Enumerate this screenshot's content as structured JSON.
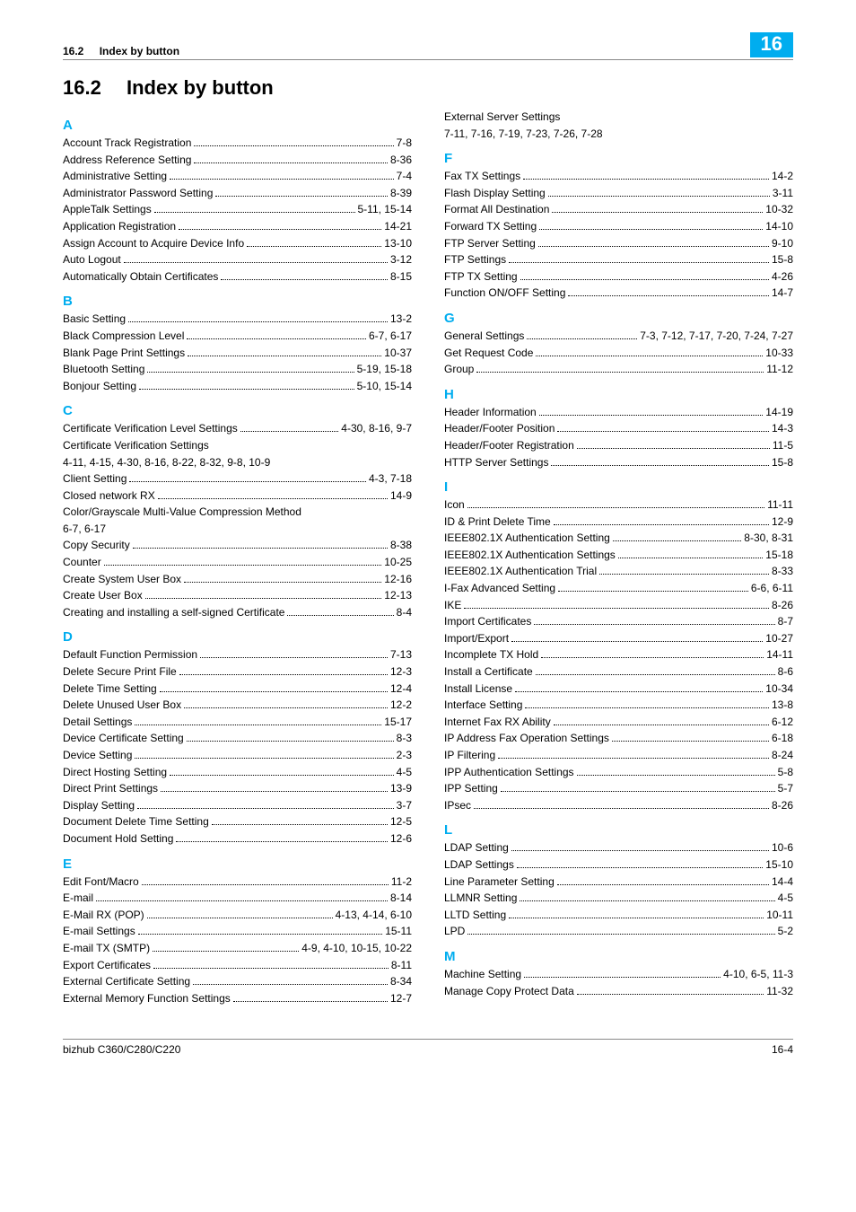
{
  "header": {
    "section_num": "16.2",
    "section_title": "Index by button",
    "chapter_badge": "16"
  },
  "title": {
    "num": "16.2",
    "text": "Index by button"
  },
  "footer": {
    "left": "bizhub C360/C280/C220",
    "right": "16-4"
  },
  "groups": [
    {
      "letter": "A",
      "entries": [
        {
          "term": "Account Track Registration",
          "pages": "7-8"
        },
        {
          "term": "Address Reference Setting",
          "pages": "8-36"
        },
        {
          "term": "Administrative Setting",
          "pages": "7-4"
        },
        {
          "term": "Administrator Password Setting",
          "pages": "8-39"
        },
        {
          "term": "AppleTalk Settings",
          "pages": "5-11, 15-14"
        },
        {
          "term": "Application Registration",
          "pages": "14-21"
        },
        {
          "term": "Assign Account to Acquire Device Info",
          "pages": "13-10"
        },
        {
          "term": "Auto Logout",
          "pages": "3-12"
        },
        {
          "term": "Automatically Obtain Certificates",
          "pages": "8-15"
        }
      ]
    },
    {
      "letter": "B",
      "entries": [
        {
          "term": "Basic Setting",
          "pages": "13-2"
        },
        {
          "term": "Black Compression Level",
          "pages": "6-7, 6-17"
        },
        {
          "term": "Blank Page Print Settings",
          "pages": "10-37"
        },
        {
          "term": "Bluetooth Setting",
          "pages": "5-19, 15-18"
        },
        {
          "term": "Bonjour Setting",
          "pages": "5-10, 15-14"
        }
      ]
    },
    {
      "letter": "C",
      "entries": [
        {
          "term": "Certificate Verification Level Settings",
          "pages": "4-30, 8-16, 9-7"
        },
        {
          "type": "ml",
          "term": "Certificate Verification Settings",
          "pages": "4-11, 4-15, 4-30, 8-16, 8-22, 8-32, 9-8, 10-9"
        },
        {
          "term": "Client Setting",
          "pages": "4-3, 7-18"
        },
        {
          "term": "Closed network RX",
          "pages": "14-9"
        },
        {
          "type": "ml",
          "term": "Color/Grayscale Multi-Value Compression Method",
          "pages": "6-7, 6-17"
        },
        {
          "term": "Copy Security",
          "pages": "8-38"
        },
        {
          "term": "Counter",
          "pages": "10-25"
        },
        {
          "term": "Create System User Box",
          "pages": "12-16"
        },
        {
          "term": "Create User Box",
          "pages": "12-13"
        },
        {
          "term": "Creating and installing a self-signed Certificate",
          "pages": "8-4"
        }
      ]
    },
    {
      "letter": "D",
      "entries": [
        {
          "term": "Default Function Permission",
          "pages": "7-13"
        },
        {
          "term": "Delete Secure Print File",
          "pages": "12-3"
        },
        {
          "term": "Delete Time Setting",
          "pages": "12-4"
        },
        {
          "term": "Delete Unused User Box",
          "pages": "12-2"
        },
        {
          "term": "Detail Settings",
          "pages": "15-17"
        },
        {
          "term": "Device Certificate Setting",
          "pages": "8-3"
        },
        {
          "term": "Device Setting",
          "pages": "2-3"
        },
        {
          "term": "Direct Hosting Setting",
          "pages": "4-5"
        },
        {
          "term": "Direct Print Settings",
          "pages": "13-9"
        },
        {
          "term": "Display Setting",
          "pages": "3-7"
        },
        {
          "term": "Document Delete Time Setting",
          "pages": "12-5"
        },
        {
          "term": "Document Hold Setting",
          "pages": "12-6"
        }
      ]
    },
    {
      "letter": "E",
      "entries": [
        {
          "term": "Edit Font/Macro",
          "pages": "11-2"
        },
        {
          "term": "E-mail",
          "pages": "8-14"
        },
        {
          "term": "E-Mail RX (POP)",
          "pages": "4-13, 4-14, 6-10"
        },
        {
          "term": "E-mail Settings",
          "pages": "15-11"
        },
        {
          "term": "E-mail TX (SMTP)",
          "pages": "4-9, 4-10, 10-15, 10-22"
        },
        {
          "term": "Export Certificates",
          "pages": "8-11"
        },
        {
          "term": "External Certificate Setting",
          "pages": "8-34"
        },
        {
          "term": "External Memory Function Settings",
          "pages": "12-7"
        },
        {
          "type": "ml",
          "term": "External Server Settings",
          "pages": "7-11, 7-16, 7-19, 7-23, 7-26, 7-28"
        }
      ]
    },
    {
      "letter": "F",
      "entries": [
        {
          "term": "Fax TX Settings",
          "pages": "14-2"
        },
        {
          "term": "Flash Display Setting",
          "pages": "3-11"
        },
        {
          "term": "Format All Destination",
          "pages": "10-32"
        },
        {
          "term": "Forward TX Setting",
          "pages": "14-10"
        },
        {
          "term": "FTP Server Setting",
          "pages": "9-10"
        },
        {
          "term": "FTP Settings",
          "pages": "15-8"
        },
        {
          "term": "FTP TX Setting",
          "pages": "4-26"
        },
        {
          "term": "Function ON/OFF Setting",
          "pages": "14-7"
        }
      ]
    },
    {
      "letter": "G",
      "entries": [
        {
          "term": "General Settings",
          "pages": "7-3, 7-12, 7-17, 7-20, 7-24, 7-27"
        },
        {
          "term": "Get Request Code",
          "pages": "10-33"
        },
        {
          "term": "Group",
          "pages": "11-12"
        }
      ]
    },
    {
      "letter": "H",
      "entries": [
        {
          "term": "Header Information",
          "pages": "14-19"
        },
        {
          "term": "Header/Footer Position",
          "pages": "14-3"
        },
        {
          "term": "Header/Footer Registration",
          "pages": "11-5"
        },
        {
          "term": "HTTP Server Settings",
          "pages": "15-8"
        }
      ]
    },
    {
      "letter": "I",
      "entries": [
        {
          "term": "Icon",
          "pages": "11-11"
        },
        {
          "term": "ID & Print Delete Time",
          "pages": "12-9"
        },
        {
          "term": "IEEE802.1X Authentication Setting",
          "pages": "8-30, 8-31"
        },
        {
          "term": "IEEE802.1X Authentication Settings",
          "pages": "15-18"
        },
        {
          "term": "IEEE802.1X Authentication Trial",
          "pages": "8-33"
        },
        {
          "term": "I-Fax Advanced Setting",
          "pages": "6-6, 6-11"
        },
        {
          "term": "IKE",
          "pages": "8-26"
        },
        {
          "term": "Import Certificates",
          "pages": "8-7"
        },
        {
          "term": "Import/Export",
          "pages": "10-27"
        },
        {
          "term": "Incomplete TX Hold",
          "pages": "14-11"
        },
        {
          "term": "Install a Certificate",
          "pages": "8-6"
        },
        {
          "term": "Install License",
          "pages": "10-34"
        },
        {
          "term": "Interface Setting",
          "pages": "13-8"
        },
        {
          "term": "Internet Fax RX Ability",
          "pages": "6-12"
        },
        {
          "term": "IP Address Fax Operation Settings",
          "pages": "6-18"
        },
        {
          "term": "IP Filtering",
          "pages": "8-24"
        },
        {
          "term": "IPP Authentication Settings",
          "pages": "5-8"
        },
        {
          "term": "IPP Setting",
          "pages": "5-7"
        },
        {
          "term": "IPsec",
          "pages": "8-26"
        }
      ]
    },
    {
      "letter": "L",
      "entries": [
        {
          "term": "LDAP Setting",
          "pages": "10-6"
        },
        {
          "term": "LDAP Settings",
          "pages": "15-10"
        },
        {
          "term": "Line Parameter Setting",
          "pages": "14-4"
        },
        {
          "term": "LLMNR Setting",
          "pages": "4-5"
        },
        {
          "term": "LLTD Setting",
          "pages": "10-11"
        },
        {
          "term": "LPD",
          "pages": "5-2"
        }
      ]
    },
    {
      "letter": "M",
      "entries": [
        {
          "term": "Machine Setting",
          "pages": "4-10, 6-5, 11-3"
        },
        {
          "term": "Manage Copy Protect Data",
          "pages": "11-32"
        }
      ]
    }
  ]
}
